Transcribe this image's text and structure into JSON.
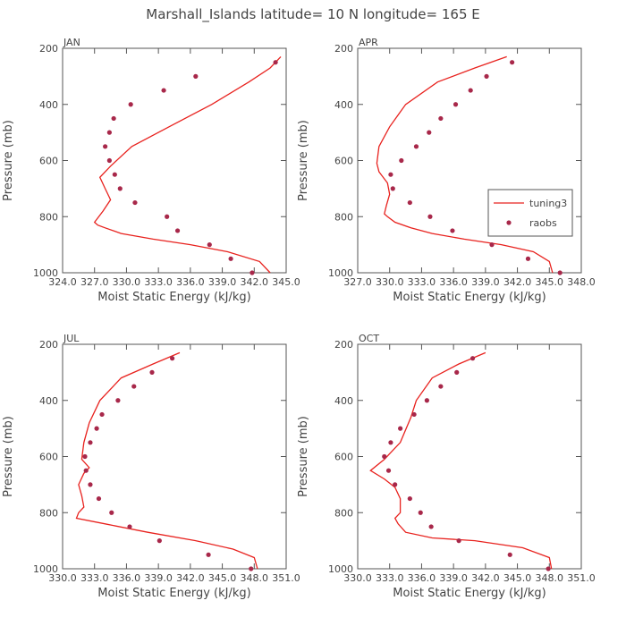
{
  "title": "Marshall_Islands  latitude= 10 N longitude= 165 E",
  "colors": {
    "model": "#e8221e",
    "obs": "#a8284a",
    "axis": "#555555"
  },
  "legend": {
    "model_label": "tuning3",
    "obs_label": "raobs"
  },
  "chart_data": [
    {
      "type": "line",
      "panel": "JAN",
      "xlabel": "Moist Static Energy (kJ/kg)",
      "ylabel": "Pressure (mb)",
      "xlim": [
        324.0,
        345.0
      ],
      "ylim": [
        1000,
        200
      ],
      "y_inverted": true,
      "xtick_labels": [
        "324.0",
        "327.0",
        "330.0",
        "333.0",
        "336.0",
        "339.0",
        "342.0",
        "345.0"
      ],
      "ytick_labels": [
        "200",
        "400",
        "600",
        "800",
        "1000"
      ],
      "series": [
        {
          "name": "tuning3",
          "style": "line",
          "x": [
            344.5,
            343.5,
            341.5,
            338.0,
            334.0,
            330.5,
            328.5,
            327.5,
            328.0,
            328.5,
            327.8,
            327.2,
            327.0,
            327.3,
            328.0,
            329.5,
            332.5,
            336.0,
            339.5,
            342.5,
            343.5
          ],
          "y": [
            230,
            270,
            320,
            400,
            480,
            550,
            620,
            660,
            700,
            740,
            780,
            810,
            820,
            830,
            840,
            860,
            880,
            900,
            925,
            960,
            1000
          ]
        },
        {
          "name": "raobs",
          "style": "points",
          "x": [
            341.8,
            339.8,
            337.8,
            334.8,
            333.8,
            330.8,
            329.4,
            328.9,
            328.4,
            328.0,
            328.4,
            328.8,
            330.4,
            333.5,
            336.5,
            344.0
          ],
          "y": [
            1000,
            950,
            900,
            850,
            800,
            750,
            700,
            650,
            600,
            550,
            500,
            450,
            400,
            350,
            300,
            250
          ]
        }
      ]
    },
    {
      "type": "line",
      "panel": "APR",
      "xlabel": "Moist Static Energy (kJ/kg)",
      "ylabel": "Pressure (mb)",
      "xlim": [
        327.0,
        348.0
      ],
      "ylim": [
        1000,
        200
      ],
      "y_inverted": true,
      "xtick_labels": [
        "327.0",
        "330.0",
        "333.0",
        "336.0",
        "339.0",
        "342.0",
        "345.0",
        "348.0"
      ],
      "ytick_labels": [
        "200",
        "400",
        "600",
        "800",
        "1000"
      ],
      "series": [
        {
          "name": "tuning3",
          "style": "line",
          "x": [
            341.0,
            338.0,
            334.5,
            331.5,
            330.0,
            329.0,
            328.8,
            329.0,
            329.8,
            330.0,
            329.7,
            329.5,
            329.8,
            330.5,
            332.0,
            334.0,
            337.0,
            340.5,
            343.5,
            345.0,
            345.3
          ],
          "y": [
            230,
            270,
            320,
            400,
            480,
            550,
            610,
            640,
            680,
            720,
            760,
            790,
            800,
            820,
            840,
            860,
            880,
            900,
            925,
            960,
            1000
          ]
        },
        {
          "name": "raobs",
          "style": "points",
          "x": [
            346.0,
            343.0,
            339.6,
            335.9,
            333.8,
            331.9,
            330.3,
            330.1,
            331.1,
            332.5,
            333.7,
            334.8,
            336.2,
            337.6,
            339.1,
            341.5
          ],
          "y": [
            1000,
            950,
            900,
            850,
            800,
            750,
            700,
            650,
            600,
            550,
            500,
            450,
            400,
            350,
            300,
            250
          ]
        }
      ]
    },
    {
      "type": "line",
      "panel": "JUL",
      "xlabel": "Moist Static Energy (kJ/kg)",
      "ylabel": "Pressure (mb)",
      "xlim": [
        330.0,
        351.0
      ],
      "ylim": [
        1000,
        200
      ],
      "y_inverted": true,
      "xtick_labels": [
        "330.0",
        "333.0",
        "336.0",
        "339.0",
        "342.0",
        "345.0",
        "348.0",
        "351.0"
      ],
      "ytick_labels": [
        "200",
        "400",
        "600",
        "800",
        "1000"
      ],
      "series": [
        {
          "name": "tuning3",
          "style": "line",
          "x": [
            341.0,
            338.5,
            335.5,
            333.5,
            332.5,
            332.0,
            331.8,
            332.5,
            332.0,
            331.5,
            331.8,
            332.0,
            331.5,
            331.3,
            334.0,
            338.0,
            342.5,
            346.0,
            348.0,
            348.3
          ],
          "y": [
            230,
            270,
            320,
            400,
            480,
            550,
            610,
            640,
            660,
            700,
            740,
            780,
            800,
            820,
            840,
            870,
            900,
            930,
            960,
            1000
          ]
        },
        {
          "name": "raobs",
          "style": "points",
          "x": [
            347.7,
            343.7,
            339.1,
            336.3,
            334.6,
            333.4,
            332.6,
            332.2,
            332.1,
            332.6,
            333.2,
            333.7,
            335.2,
            336.7,
            338.4,
            340.3
          ],
          "y": [
            1000,
            950,
            900,
            850,
            800,
            750,
            700,
            650,
            600,
            550,
            500,
            450,
            400,
            350,
            300,
            250
          ]
        }
      ]
    },
    {
      "type": "line",
      "panel": "OCT",
      "xlabel": "Moist Static Energy (kJ/kg)",
      "ylabel": "Pressure (mb)",
      "xlim": [
        330.0,
        351.0
      ],
      "ylim": [
        1000,
        200
      ],
      "y_inverted": true,
      "xtick_labels": [
        "330.0",
        "333.0",
        "336.0",
        "339.0",
        "342.0",
        "345.0",
        "348.0",
        "351.0"
      ],
      "ytick_labels": [
        "200",
        "400",
        "600",
        "800",
        "1000"
      ],
      "series": [
        {
          "name": "tuning3",
          "style": "line",
          "x": [
            342.0,
            339.5,
            337.0,
            335.5,
            335.0,
            334.0,
            332.5,
            331.2,
            332.5,
            333.5,
            334.0,
            334.0,
            333.5,
            333.8,
            334.5,
            337.0,
            341.0,
            345.5,
            348.0,
            348.2
          ],
          "y": [
            230,
            270,
            320,
            400,
            460,
            550,
            610,
            650,
            680,
            710,
            750,
            800,
            820,
            840,
            870,
            890,
            900,
            925,
            960,
            1000
          ]
        },
        {
          "name": "raobs",
          "style": "points",
          "x": [
            347.9,
            344.3,
            339.5,
            336.9,
            335.9,
            334.9,
            333.5,
            332.9,
            332.5,
            333.1,
            334.0,
            335.3,
            336.5,
            337.8,
            339.3,
            340.8
          ],
          "y": [
            1000,
            950,
            900,
            850,
            800,
            750,
            700,
            650,
            600,
            550,
            500,
            450,
            400,
            350,
            300,
            250
          ]
        }
      ]
    }
  ]
}
